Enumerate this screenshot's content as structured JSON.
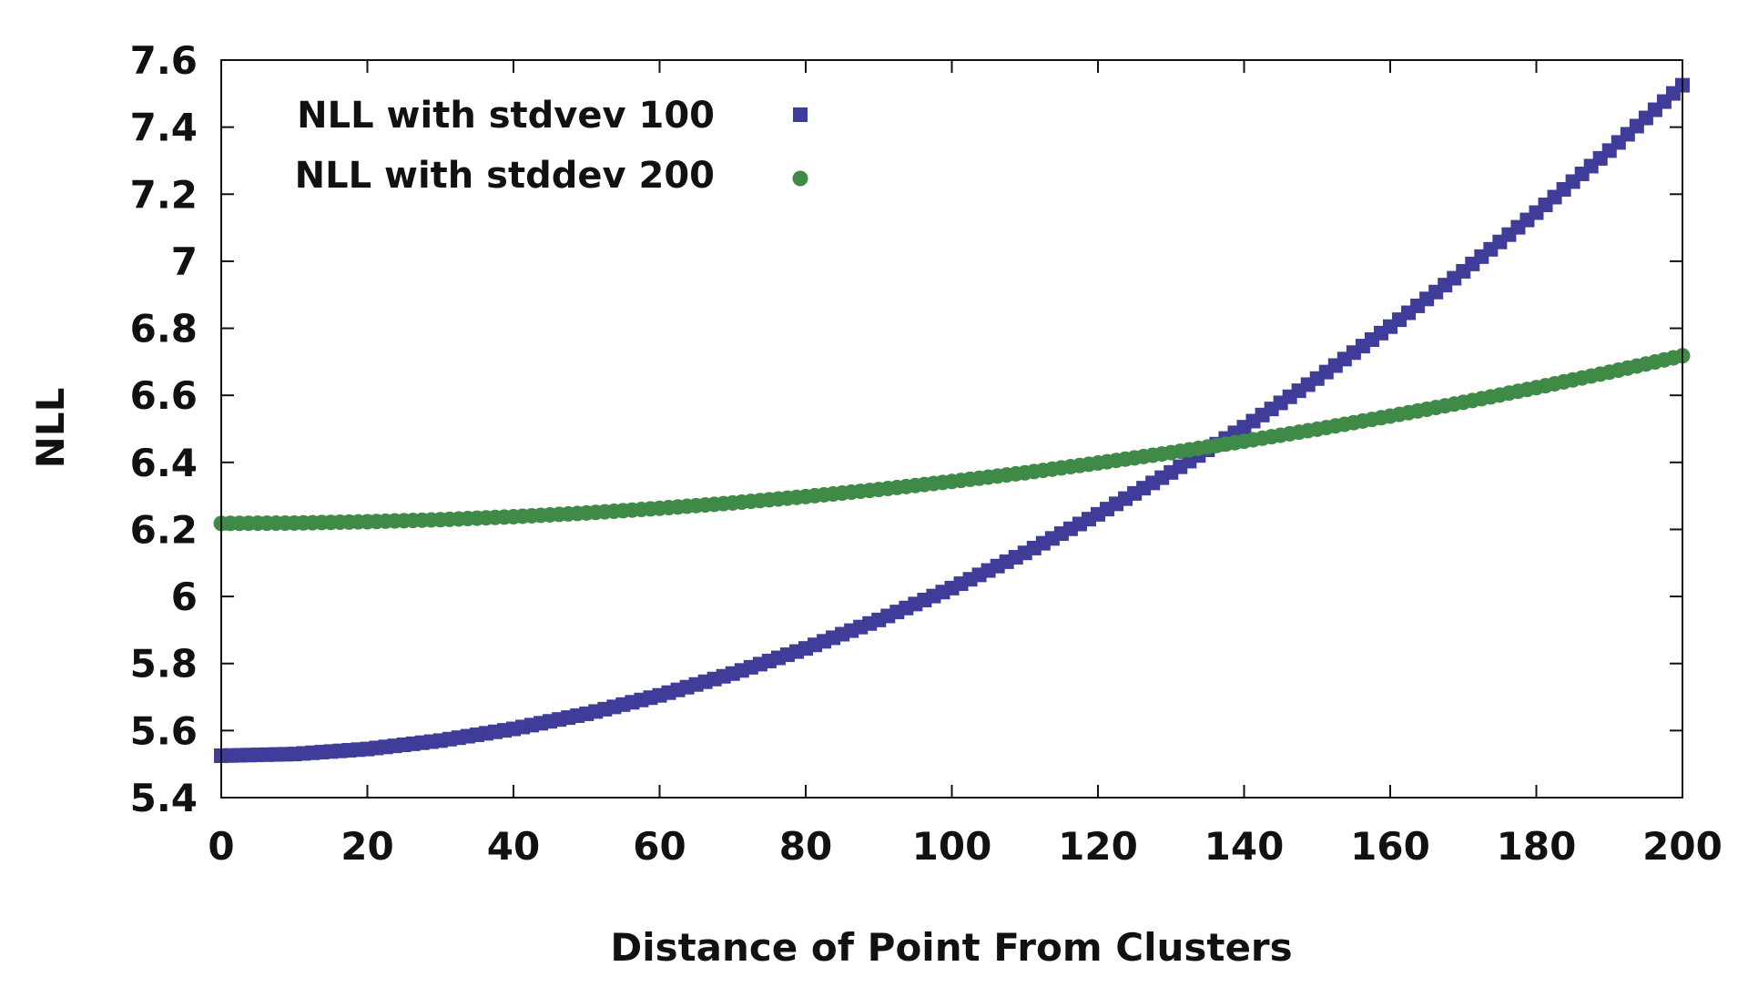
{
  "chart_data": {
    "type": "scatter",
    "title": "",
    "xlabel": "Distance of Point From Clusters",
    "ylabel": "NLL",
    "xlim": [
      0,
      200
    ],
    "ylim": [
      5.4,
      7.6
    ],
    "xticks": [
      "0",
      "20",
      "40",
      "60",
      "80",
      "100",
      "120",
      "140",
      "160",
      "180",
      "200"
    ],
    "yticks": [
      "5.4",
      "5.6",
      "5.8",
      "6",
      "6.2",
      "6.4",
      "6.6",
      "6.8",
      "7",
      "7.2",
      "7.4",
      "7.6"
    ],
    "grid": false,
    "legend_position": "top-left",
    "series": [
      {
        "name": "NLL with stdvev 100",
        "marker": "square",
        "color": "#3f3d99",
        "x": [
          0,
          10,
          20,
          30,
          40,
          50,
          60,
          70,
          80,
          90,
          100,
          110,
          120,
          130,
          140,
          150,
          160,
          170,
          180,
          190,
          200
        ],
        "y": [
          5.525,
          5.53,
          5.545,
          5.57,
          5.605,
          5.65,
          5.705,
          5.77,
          5.845,
          5.93,
          6.025,
          6.13,
          6.245,
          6.37,
          6.505,
          6.65,
          6.805,
          6.97,
          7.145,
          7.33,
          7.525
        ]
      },
      {
        "name": "NLL with stddev 200",
        "marker": "circle",
        "color": "#3f8a47",
        "x": [
          0,
          10,
          20,
          30,
          40,
          50,
          60,
          70,
          80,
          90,
          100,
          110,
          120,
          130,
          140,
          150,
          160,
          170,
          180,
          190,
          200
        ],
        "y": [
          6.218,
          6.219,
          6.223,
          6.229,
          6.238,
          6.249,
          6.263,
          6.279,
          6.298,
          6.319,
          6.343,
          6.369,
          6.398,
          6.429,
          6.463,
          6.499,
          6.538,
          6.579,
          6.623,
          6.669,
          6.718
        ]
      }
    ]
  }
}
